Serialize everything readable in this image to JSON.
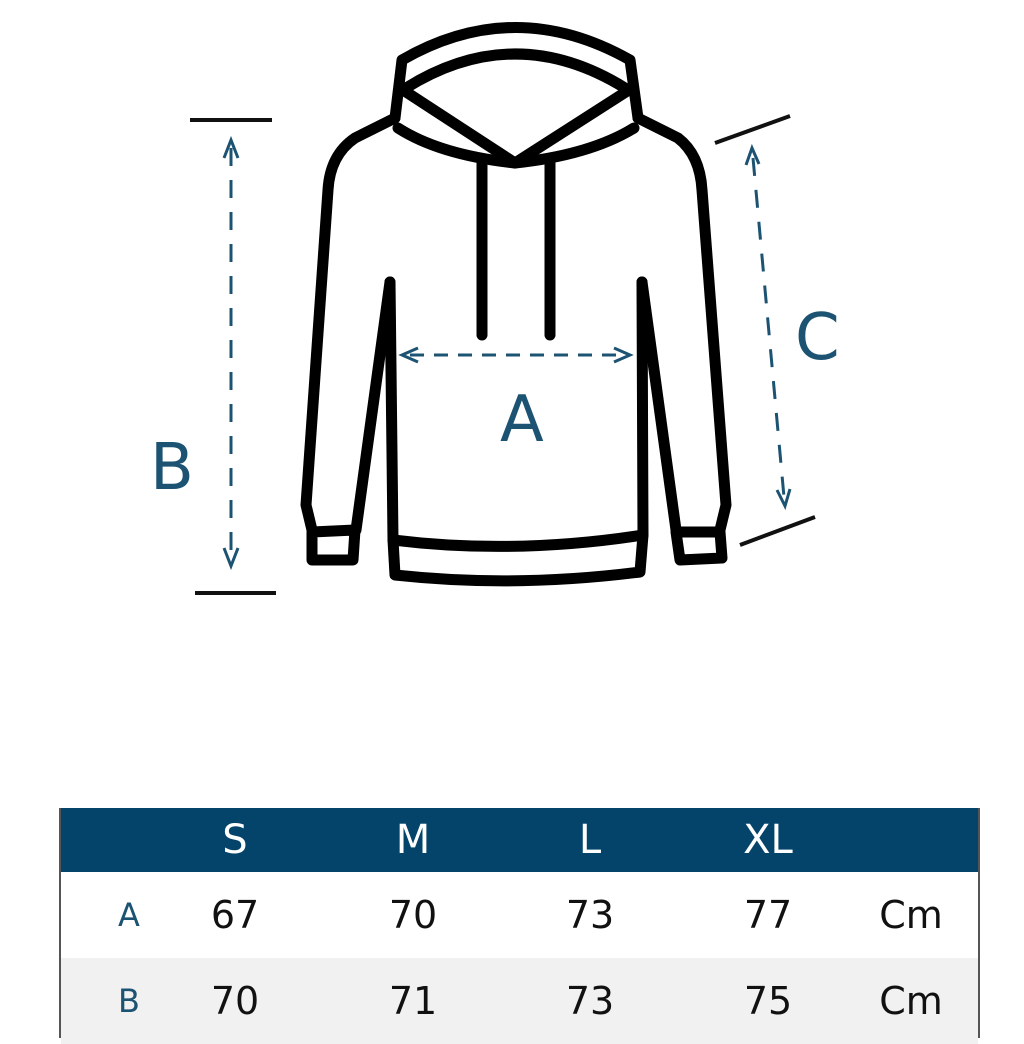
{
  "diagram": {
    "labels": {
      "a": "A",
      "b": "B",
      "c": "C"
    },
    "colors": {
      "outline": "#000000",
      "measure": "#1d5372",
      "header": "#04446a"
    }
  },
  "table": {
    "headers": [
      "",
      "S",
      "M",
      "L",
      "XL",
      ""
    ],
    "rows": [
      {
        "label": "A",
        "values": [
          "67",
          "70",
          "73",
          "77"
        ],
        "unit": "Cm"
      },
      {
        "label": "B",
        "values": [
          "70",
          "71",
          "73",
          "75"
        ],
        "unit": "Cm"
      }
    ]
  }
}
